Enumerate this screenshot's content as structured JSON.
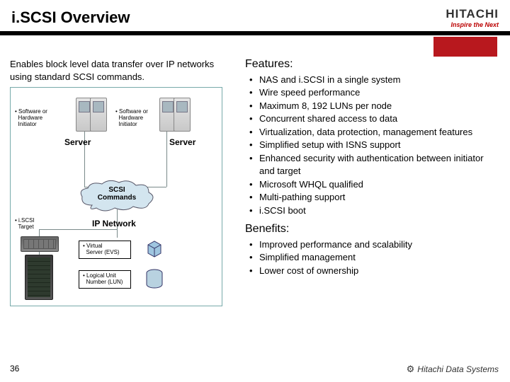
{
  "header": {
    "title": "i.SCSI Overview",
    "logo_main": "HITACHI",
    "logo_sub": "Inspire the Next"
  },
  "colors": {
    "red_accent": "#b8181e",
    "black_bar": "#000000",
    "diagram_border": "#7aa",
    "cloud_fill": "#d3e5ef",
    "cube_fill": "#9fc6e0",
    "cyl_fill": "#b8d2e0"
  },
  "diagram": {
    "intro": "Enables block level data transfer over IP networks using standard SCSI commands.",
    "callout_initiator_left": "• Software or\n  Hardware\n  Initiator",
    "callout_initiator_right": "• Software or\n  Hardware\n  Initiator",
    "server_label_left": "Server",
    "server_label_right": "Server",
    "cloud_line1": "SCSI",
    "cloud_line2": "Commands",
    "ip_network": "IP Network",
    "iscsi_target": "• i.SCSI\n  Target",
    "legend_evs": "• Virtual\n  Server (EVS)",
    "legend_lun": "• Logical Unit\n  Number (LUN)"
  },
  "features": {
    "heading": "Features:",
    "items": [
      "NAS and i.SCSI in a single system",
      "Wire speed performance",
      "Maximum 8, 192 LUNs per node",
      "Concurrent shared access to data",
      "Virtualization, data protection, management features",
      "Simplified setup with ISNS support",
      "Enhanced security with authentication between initiator and target",
      "Microsoft WHQL qualified",
      "Multi-pathing support",
      "i.SCSI boot"
    ]
  },
  "benefits": {
    "heading": "Benefits:",
    "items": [
      "Improved performance and scalability",
      "Simplified management",
      "Lower cost of ownership"
    ]
  },
  "footer": {
    "page_number": "36",
    "brand": "Hitachi Data Systems"
  }
}
